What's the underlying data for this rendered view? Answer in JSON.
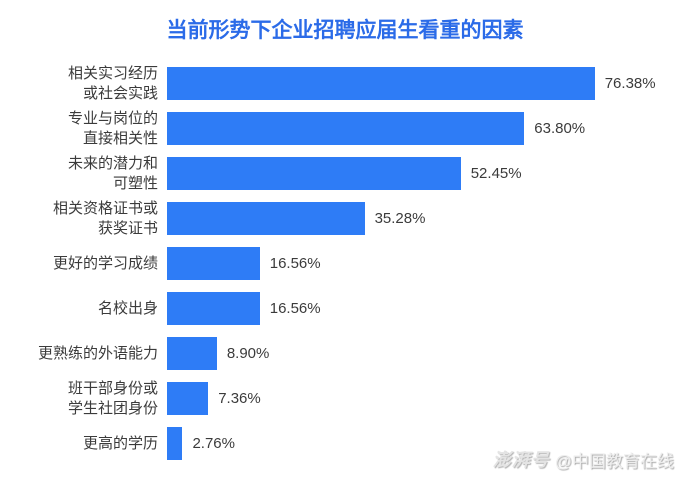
{
  "title": "当前形势下企业招聘应届生看重的因素",
  "watermark": {
    "logo": "澎湃号",
    "text": "@中国教育在线"
  },
  "chart_data": {
    "type": "bar",
    "orientation": "horizontal",
    "title": "当前形势下企业招聘应届生看重的因素",
    "categories": [
      "相关实习经历\n或社会实践",
      "专业与岗位的\n直接相关性",
      "未来的潜力和\n可塑性",
      "相关资格证书或\n获奖证书",
      "更好的学习成绩",
      "名校出身",
      "更熟练的外语能力",
      "班干部身份或\n学生社团身份",
      "更高的学历"
    ],
    "values": [
      76.38,
      63.8,
      52.45,
      35.28,
      16.56,
      16.56,
      8.9,
      7.36,
      2.76
    ],
    "value_labels": [
      "76.38%",
      "63.80%",
      "52.45%",
      "35.28%",
      "16.56%",
      "16.56%",
      "8.90%",
      "7.36%",
      "2.76%"
    ],
    "xlabel": "",
    "ylabel": "",
    "xlim": [
      0,
      80
    ],
    "grid": false,
    "legend": false,
    "bar_color": "#2E7CF6",
    "title_color": "#2B6BE8",
    "label_color": "#3b3b3b"
  }
}
